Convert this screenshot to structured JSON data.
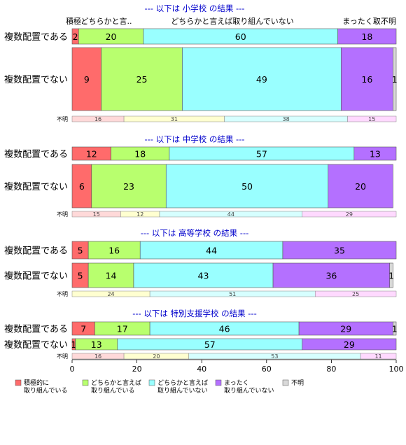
{
  "colors": {
    "series": [
      "#ff6b6b",
      "#b8ff6e",
      "#99ffff",
      "#b470ff",
      "#d9d9d9"
    ],
    "unknown": [
      "#ffd9d9",
      "#ffffd0",
      "#d6ffff",
      "#ffd9ff"
    ],
    "title": "#0000cc"
  },
  "chart_data": {
    "type": "bar",
    "orientation": "horizontal-stacked",
    "xlim": [
      0,
      100
    ],
    "xticks": [
      0,
      20,
      40,
      60,
      80,
      100
    ],
    "header_labels": [
      "積極..",
      "どちらかと言..",
      "どちらかと言えば取り組んでいない",
      "まったく取..",
      "不明"
    ],
    "legend": [
      {
        "label": [
          "積極的に",
          "取り組んでいる"
        ]
      },
      {
        "label": [
          "どちらかと言えば",
          "取り組んでいる"
        ]
      },
      {
        "label": [
          "どちらかと言えば",
          "取り組んでいない"
        ]
      },
      {
        "label": [
          "まったく",
          "取り組んでいない"
        ]
      },
      {
        "label": [
          "不明"
        ]
      }
    ],
    "groups": [
      {
        "title": "--- 以下は 小学校 の結果 ---",
        "rows": [
          {
            "label": "複数配置である",
            "values": [
              2,
              20,
              60,
              18,
              0
            ],
            "value_labels": [
              "2",
              "20",
              "60",
              "18",
              ""
            ]
          },
          {
            "label": "複数配置でない",
            "values": [
              9,
              25,
              49,
              16,
              1
            ],
            "value_labels": [
              "9",
              "25",
              "49",
              "16",
              "1"
            ]
          }
        ],
        "unknown": {
          "label": "不明",
          "values": [
            16,
            31,
            38,
            15
          ],
          "value_labels": [
            "16",
            "31",
            "38",
            "15"
          ]
        }
      },
      {
        "title": "--- 以下は 中学校 の結果 ---",
        "rows": [
          {
            "label": "複数配置である",
            "values": [
              12,
              18,
              57,
              13,
              0
            ],
            "value_labels": [
              "12",
              "18",
              "57",
              "13",
              ""
            ]
          },
          {
            "label": "複数配置でない",
            "values": [
              6,
              23,
              50,
              20,
              0
            ],
            "value_labels": [
              "6",
              "23",
              "50",
              "20",
              ""
            ]
          }
        ],
        "unknown": {
          "label": "不明",
          "values": [
            15,
            12,
            44,
            29
          ],
          "value_labels": [
            "15",
            "12",
            "44",
            "29"
          ]
        }
      },
      {
        "title": "--- 以下は 高等学校 の結果 ---",
        "rows": [
          {
            "label": "複数配置である",
            "values": [
              5,
              16,
              44,
              35,
              0
            ],
            "value_labels": [
              "5",
              "16",
              "44",
              "35",
              ""
            ]
          },
          {
            "label": "複数配置でない",
            "values": [
              5,
              14,
              43,
              36,
              1
            ],
            "value_labels": [
              "5",
              "14",
              "43",
              "36",
              "1"
            ]
          }
        ],
        "unknown": {
          "label": "不明",
          "values": [
            0,
            24,
            51,
            25
          ],
          "value_labels": [
            "",
            "24",
            "51",
            "25"
          ]
        }
      },
      {
        "title": "--- 以下は 特別支援学校 の結果 ---",
        "rows": [
          {
            "label": "複数配置である",
            "values": [
              7,
              17,
              46,
              29,
              1
            ],
            "value_labels": [
              "7",
              "17",
              "46",
              "29",
              "1"
            ]
          },
          {
            "label": "複数配置でない",
            "values": [
              1,
              13,
              57,
              29,
              0
            ],
            "value_labels": [
              "1",
              "13",
              "57",
              "29",
              ""
            ]
          }
        ],
        "unknown": {
          "label": "不明",
          "values": [
            16,
            20,
            53,
            11
          ],
          "value_labels": [
            "16",
            "20",
            "53",
            "11"
          ]
        }
      }
    ]
  }
}
